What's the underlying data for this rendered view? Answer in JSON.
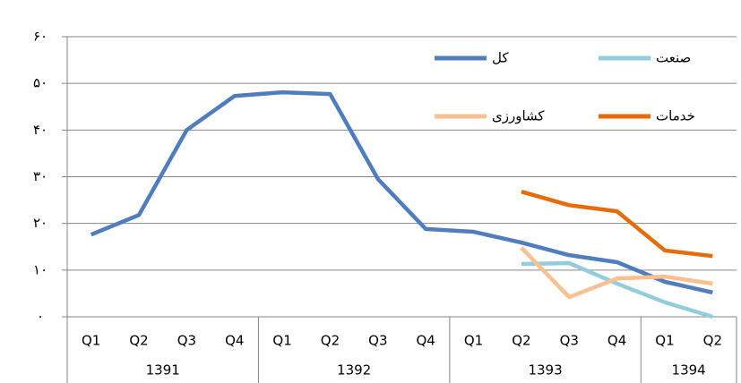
{
  "chart_data": {
    "type": "line",
    "groups": [
      {
        "label": "1391",
        "categories": [
          "Q1",
          "Q2",
          "Q3",
          "Q4"
        ]
      },
      {
        "label": "1392",
        "categories": [
          "Q1",
          "Q2",
          "Q3",
          "Q4"
        ]
      },
      {
        "label": "1393",
        "categories": [
          "Q1",
          "Q2",
          "Q3",
          "Q4"
        ]
      },
      {
        "label": "1394",
        "categories": [
          "Q1",
          "Q2"
        ]
      }
    ],
    "series": [
      {
        "name": "کل",
        "color": "#4f7dbd",
        "values": [
          17.6,
          21.8,
          40,
          47.3,
          48.1,
          47.7,
          29.5,
          18.8,
          18.2,
          15.9,
          13.2,
          11.7,
          7.5,
          5.2
        ]
      },
      {
        "name": "صنعت",
        "color": "#93cddd",
        "values": [
          null,
          null,
          null,
          null,
          null,
          null,
          null,
          null,
          null,
          11.3,
          11.5,
          7.1,
          3.1,
          0
        ]
      },
      {
        "name": "کشاورزی",
        "color": "#fac090",
        "values": [
          null,
          null,
          null,
          null,
          null,
          null,
          null,
          null,
          null,
          14.8,
          4.2,
          8.2,
          8.6,
          7.1
        ]
      },
      {
        "name": "خدمات",
        "color": "#e46c0a",
        "values": [
          null,
          null,
          null,
          null,
          null,
          null,
          null,
          null,
          null,
          26.8,
          23.9,
          22.6,
          14.2,
          13.0
        ]
      }
    ],
    "ylim": [
      0,
      60
    ],
    "yticks": [
      {
        "value": 0,
        "label": "۰"
      },
      {
        "value": 10,
        "label": "۱۰"
      },
      {
        "value": 20,
        "label": "۲۰"
      },
      {
        "value": 30,
        "label": "۳۰"
      },
      {
        "value": 40,
        "label": "۴۰"
      },
      {
        "value": 50,
        "label": "۵۰"
      },
      {
        "value": 60,
        "label": "۶۰"
      }
    ],
    "grid": true,
    "legend": "top-right"
  }
}
